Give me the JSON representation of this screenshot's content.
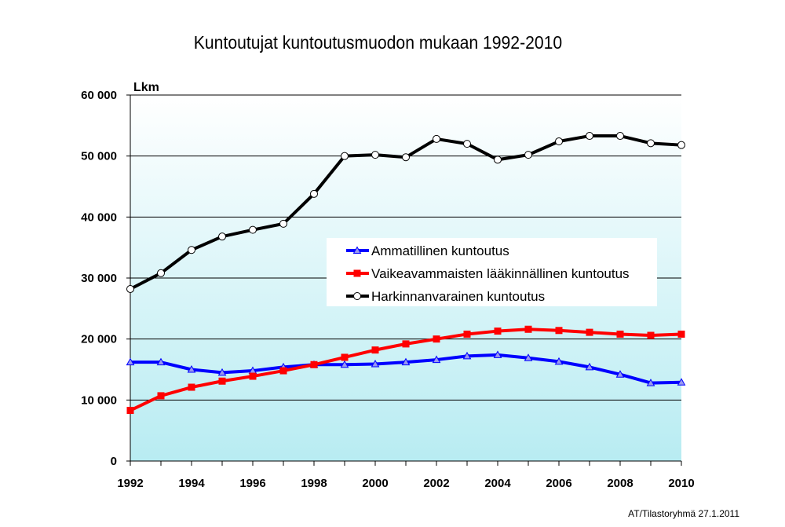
{
  "chart_data": {
    "type": "line",
    "title": "Kuntoutujat kuntoutusmuodon mukaan 1992-2010",
    "ylabel": "Lkm",
    "xlabel": "",
    "x": [
      1992,
      1993,
      1994,
      1995,
      1996,
      1997,
      1998,
      1999,
      2000,
      2001,
      2002,
      2003,
      2004,
      2005,
      2006,
      2007,
      2008,
      2009,
      2010
    ],
    "xticks": [
      "1992",
      "1994",
      "1996",
      "1998",
      "2000",
      "2002",
      "2004",
      "2006",
      "2008",
      "2010"
    ],
    "xlim": [
      1992,
      2010
    ],
    "ylim": [
      0,
      60000
    ],
    "yticks": [
      "0",
      "10 000",
      "20 000",
      "30 000",
      "40 000",
      "50 000",
      "60 000"
    ],
    "grid": true,
    "legend_position": "center-right",
    "series": [
      {
        "name": "Ammatillinen kuntoutus",
        "color": "#0000ff",
        "marker": "triangle",
        "values": [
          16200,
          16200,
          15000,
          14500,
          14800,
          15400,
          15800,
          15800,
          15900,
          16200,
          16600,
          17200,
          17400,
          16900,
          16300,
          15400,
          14200,
          12800,
          12900
        ]
      },
      {
        "name": "Vaikeavammaisten lääkinnällinen kuntoutus",
        "color": "#ff0000",
        "marker": "square",
        "values": [
          8300,
          10700,
          12100,
          13100,
          13900,
          14800,
          15800,
          17000,
          18200,
          19200,
          20000,
          20800,
          21300,
          21600,
          21400,
          21100,
          20800,
          20600,
          20800
        ]
      },
      {
        "name": "Harkinnanvarainen kuntoutus",
        "color": "#000000",
        "marker": "circle",
        "values": [
          28200,
          30800,
          34600,
          36800,
          37900,
          38900,
          43800,
          50000,
          50200,
          49800,
          52800,
          52000,
          49400,
          50200,
          52400,
          53300,
          53300,
          52100,
          51800
        ]
      }
    ]
  },
  "footer": "AT/Tilastoryhmä 27.1.2011"
}
